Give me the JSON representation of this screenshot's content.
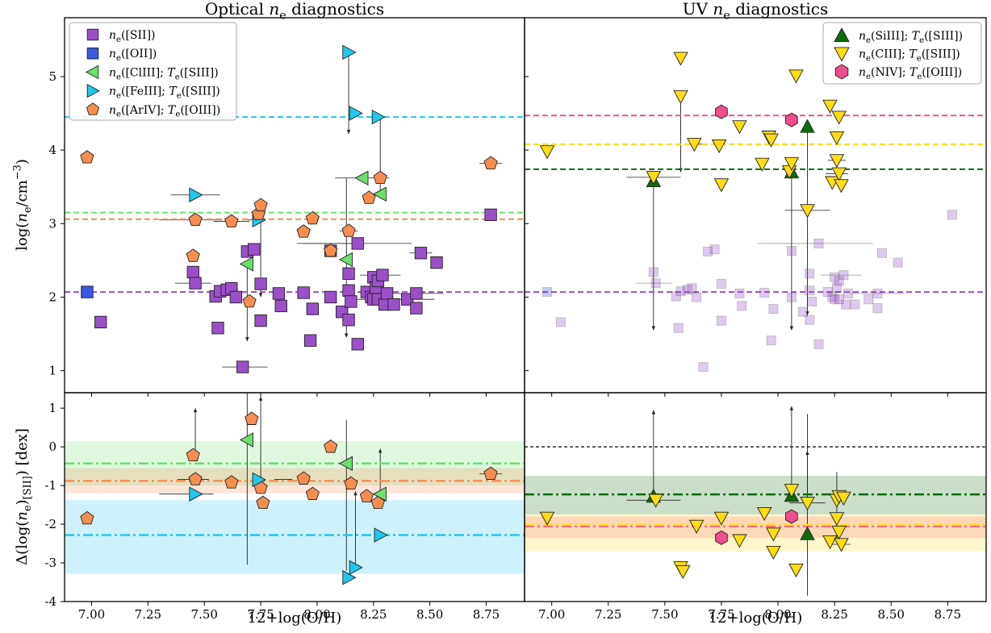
{
  "chart_data": [
    {
      "type": "scatter",
      "panel": "top-left",
      "title": "Optical n_e diagnostics",
      "title_parts": {
        "prefix": "Optical ",
        "sym": "n",
        "sub": "e",
        "suffix": " diagnostics"
      },
      "ylabel": "log(n_e/cm^-3)",
      "xlim": [
        6.88,
        8.92
      ],
      "ylim": [
        0.7,
        5.8
      ],
      "yticks": [
        1,
        2,
        3,
        4,
        5
      ],
      "legend_position": "upper-left",
      "legend": [
        {
          "key": "sii",
          "sym": "n",
          "sub": "e",
          "text": "([SII])"
        },
        {
          "key": "oii",
          "sym": "n",
          "sub": "e",
          "text": "([OII])"
        },
        {
          "key": "cliii",
          "sym": "n",
          "sub": "e",
          "text": "([ClIII]; ",
          "sym2": "T",
          "sub2": "e",
          "text2": "([SIII])"
        },
        {
          "key": "feiii",
          "sym": "n",
          "sub": "e",
          "text": "([FeIII]; ",
          "sym2": "T",
          "sub2": "e",
          "text2": "([SIII])"
        },
        {
          "key": "ariv",
          "sym": "n",
          "sub": "e",
          "text": "([ArIV]; ",
          "sym2": "T",
          "sub2": "e",
          "text2": "([OIII])"
        }
      ],
      "medians": [
        {
          "series": "feiii",
          "value": 4.45
        },
        {
          "series": "cliii",
          "value": 3.15
        },
        {
          "series": "ariv",
          "value": 3.06
        },
        {
          "series": "sii",
          "value": 2.07
        }
      ],
      "series": [
        {
          "key": "sii",
          "name": "n_e([SII])",
          "points": [
            [
              7.04,
              1.66
            ],
            [
              7.45,
              2.34
            ],
            [
              7.46,
              2.19
            ],
            [
              7.55,
              2.01
            ],
            [
              7.56,
              1.58
            ],
            [
              7.57,
              2.08
            ],
            [
              7.6,
              2.1
            ],
            [
              7.62,
              2.12
            ],
            [
              7.64,
              2.0
            ],
            [
              7.67,
              1.05
            ],
            [
              7.69,
              2.62
            ],
            [
              7.72,
              2.65
            ],
            [
              7.75,
              2.18
            ],
            [
              7.75,
              1.68
            ],
            [
              7.83,
              2.05
            ],
            [
              7.84,
              1.88
            ],
            [
              7.94,
              2.06
            ],
            [
              7.97,
              1.41
            ],
            [
              7.98,
              1.84
            ],
            [
              8.06,
              2.0
            ],
            [
              8.06,
              2.63
            ],
            [
              8.11,
              1.8
            ],
            [
              8.14,
              2.32
            ],
            [
              8.14,
              2.09
            ],
            [
              8.14,
              1.69
            ],
            [
              8.15,
              1.94
            ],
            [
              8.18,
              1.36
            ],
            [
              8.18,
              2.73
            ],
            [
              8.22,
              2.07
            ],
            [
              8.24,
              2.0
            ],
            [
              8.25,
              2.27
            ],
            [
              8.25,
              1.97
            ],
            [
              8.26,
              2.13
            ],
            [
              8.27,
              2.22
            ],
            [
              8.27,
              1.97
            ],
            [
              8.29,
              2.3
            ],
            [
              8.3,
              1.9
            ],
            [
              8.31,
              2.05
            ],
            [
              8.34,
              1.9
            ],
            [
              8.4,
              1.97
            ],
            [
              8.44,
              1.85
            ],
            [
              8.44,
              2.05
            ],
            [
              8.46,
              2.6
            ],
            [
              8.53,
              2.47
            ],
            [
              8.77,
              3.12
            ]
          ]
        },
        {
          "key": "oii",
          "name": "n_e([OII])",
          "points": [
            [
              6.98,
              2.07
            ]
          ]
        },
        {
          "key": "cliii",
          "name": "n_e([ClIII]; T_e([SIII]))",
          "points": [
            [
              7.69,
              2.45
            ],
            [
              8.13,
              2.51
            ],
            [
              8.2,
              3.62
            ],
            [
              8.28,
              3.4
            ]
          ]
        },
        {
          "key": "feiii",
          "name": "n_e([FeIII]; T_e([SIII]))",
          "points": [
            [
              7.46,
              3.39
            ],
            [
              7.74,
              3.05
            ],
            [
              8.14,
              5.33
            ],
            [
              8.17,
              4.5
            ],
            [
              8.27,
              4.45
            ]
          ]
        },
        {
          "key": "ariv",
          "name": "n_e([ArIV]; T_e([OIII]))",
          "points": [
            [
              6.98,
              3.9
            ],
            [
              7.45,
              2.56
            ],
            [
              7.46,
              3.05
            ],
            [
              7.62,
              3.03
            ],
            [
              7.7,
              1.94
            ],
            [
              7.74,
              3.13
            ],
            [
              7.75,
              3.25
            ],
            [
              7.94,
              2.89
            ],
            [
              7.98,
              3.07
            ],
            [
              8.06,
              2.63
            ],
            [
              8.14,
              2.9
            ],
            [
              8.23,
              3.35
            ],
            [
              8.28,
              3.62
            ],
            [
              8.77,
              3.82
            ]
          ]
        }
      ]
    },
    {
      "type": "scatter",
      "panel": "top-right",
      "title": "UV n_e diagnostics",
      "title_parts": {
        "prefix": "UV ",
        "sym": "n",
        "sub": "e",
        "suffix": " diagnostics"
      },
      "xlim": [
        6.88,
        8.92
      ],
      "ylim": [
        0.7,
        5.8
      ],
      "legend_position": "upper-right",
      "legend": [
        {
          "key": "siiii",
          "sym": "n",
          "sub": "e",
          "text": "(SiIII]; ",
          "sym2": "T",
          "sub2": "e",
          "text2": "([SIII])"
        },
        {
          "key": "ciii",
          "sym": "n",
          "sub": "e",
          "text": "(CIII]; ",
          "sym2": "T",
          "sub2": "e",
          "text2": "([SIII])"
        },
        {
          "key": "niv",
          "sym": "n",
          "sub": "e",
          "text": "(NIV]; ",
          "sym2": "T",
          "sub2": "e",
          "text2": "([OIII])"
        }
      ],
      "medians": [
        {
          "series": "niv",
          "value": 4.47
        },
        {
          "series": "ciii",
          "value": 4.08
        },
        {
          "series": "siiii",
          "value": 3.74
        },
        {
          "series": "sii",
          "value": 2.07
        }
      ],
      "series": [
        {
          "key": "siiii",
          "name": "n_e(SiIII]; T_e([SIII]))",
          "points": [
            [
              7.45,
              3.58
            ],
            [
              8.06,
              3.7
            ],
            [
              8.13,
              4.32
            ]
          ]
        },
        {
          "key": "ciii",
          "name": "n_e(CIII]; T_e([SIII]))",
          "points": [
            [
              6.98,
              3.98
            ],
            [
              7.45,
              3.63
            ],
            [
              7.57,
              5.25
            ],
            [
              7.57,
              4.73
            ],
            [
              7.63,
              4.08
            ],
            [
              7.74,
              4.06
            ],
            [
              7.75,
              3.53
            ],
            [
              7.83,
              4.32
            ],
            [
              7.93,
              3.81
            ],
            [
              7.96,
              4.18
            ],
            [
              7.97,
              4.14
            ],
            [
              8.05,
              3.71
            ],
            [
              8.06,
              3.82
            ],
            [
              8.08,
              5.01
            ],
            [
              8.13,
              3.18
            ],
            [
              8.23,
              4.6
            ],
            [
              8.24,
              3.56
            ],
            [
              8.26,
              3.86
            ],
            [
              8.26,
              4.17
            ],
            [
              8.27,
              3.68
            ],
            [
              8.27,
              4.45
            ],
            [
              8.28,
              3.52
            ]
          ]
        },
        {
          "key": "niv",
          "name": "n_e(NIV]; T_e([OIII]))",
          "points": [
            [
              7.75,
              4.52
            ],
            [
              8.06,
              4.41
            ]
          ]
        }
      ]
    },
    {
      "type": "scatter",
      "panel": "bottom-left",
      "ylabel": "Δ(log(n_e)_[SII]) [dex]",
      "xlabel": "12+log(O/H)",
      "xlim": [
        6.88,
        8.92
      ],
      "ylim": [
        -4,
        1.4
      ],
      "xticks": [
        "7.00",
        "7.25",
        "7.50",
        "7.75",
        "8.00",
        "8.25",
        "8.50",
        "8.75"
      ],
      "yticks": [
        1,
        0,
        -1,
        -2,
        -3,
        -4
      ],
      "medians": [
        {
          "series": "cliii",
          "value": -0.43,
          "band": [
            -1.0,
            0.15
          ]
        },
        {
          "series": "ariv",
          "value": -0.88,
          "band": [
            -1.2,
            -0.55
          ]
        },
        {
          "series": "feiii",
          "value": -2.28,
          "band": [
            -3.28,
            -1.38
          ]
        }
      ],
      "series": [
        {
          "key": "ariv",
          "points": [
            [
              6.98,
              -1.85
            ],
            [
              7.45,
              -0.22
            ],
            [
              7.46,
              -0.84
            ],
            [
              7.62,
              -0.92
            ],
            [
              7.71,
              0.72
            ],
            [
              7.75,
              -1.06
            ],
            [
              7.76,
              -1.45
            ],
            [
              7.94,
              -0.82
            ],
            [
              7.98,
              -1.22
            ],
            [
              8.06,
              0.0
            ],
            [
              8.15,
              -0.95
            ],
            [
              8.22,
              -1.28
            ],
            [
              8.27,
              -1.45
            ],
            [
              8.77,
              -0.7
            ]
          ]
        },
        {
          "key": "cliii",
          "points": [
            [
              7.69,
              0.18
            ],
            [
              8.13,
              -0.43
            ],
            [
              8.28,
              -1.22
            ]
          ]
        },
        {
          "key": "feiii",
          "points": [
            [
              7.46,
              -1.22
            ],
            [
              7.74,
              -0.85
            ],
            [
              8.14,
              -3.38
            ],
            [
              8.17,
              -3.12
            ],
            [
              8.28,
              -2.28
            ]
          ]
        }
      ]
    },
    {
      "type": "scatter",
      "panel": "bottom-right",
      "xlabel": "12+log(O/H)",
      "xlim": [
        6.88,
        8.92
      ],
      "ylim": [
        -4,
        1.4
      ],
      "xticks": [
        "7.00",
        "7.25",
        "7.50",
        "7.75",
        "8.00",
        "8.25",
        "8.50",
        "8.75"
      ],
      "medians": [
        {
          "series": "siiii",
          "value": -1.23,
          "band": [
            -1.75,
            -0.75
          ]
        },
        {
          "series": "niv",
          "value": -2.05,
          "band": [
            -2.35,
            -1.8
          ]
        },
        {
          "series": "ciii",
          "value": -2.02,
          "band": [
            -2.7,
            -1.75
          ]
        },
        {
          "series": "zero",
          "value": 0.0
        }
      ],
      "series": [
        {
          "key": "siiii",
          "points": [
            [
              7.45,
              -1.28
            ],
            [
              8.06,
              -1.26
            ],
            [
              8.13,
              -2.25
            ]
          ]
        },
        {
          "key": "ciii",
          "points": [
            [
              6.98,
              -1.84
            ],
            [
              7.46,
              -1.38
            ],
            [
              7.57,
              -3.12
            ],
            [
              7.58,
              -3.22
            ],
            [
              7.64,
              -2.05
            ],
            [
              7.75,
              -1.84
            ],
            [
              7.83,
              -2.42
            ],
            [
              7.94,
              -1.72
            ],
            [
              7.98,
              -2.72
            ],
            [
              7.98,
              -2.25
            ],
            [
              8.06,
              -1.12
            ],
            [
              8.08,
              -3.18
            ],
            [
              8.13,
              -1.45
            ],
            [
              8.23,
              -2.45
            ],
            [
              8.26,
              -1.85
            ],
            [
              8.26,
              -1.38
            ],
            [
              8.27,
              -1.28
            ],
            [
              8.28,
              -2.52
            ],
            [
              8.29,
              -1.32
            ],
            [
              8.27,
              -2.2
            ]
          ]
        },
        {
          "key": "niv",
          "points": [
            [
              7.75,
              -2.35
            ],
            [
              8.06,
              -1.8
            ]
          ]
        }
      ]
    }
  ],
  "colors": {
    "sii": "#9b4fc9",
    "oii": "#3a58e0",
    "cliii": "#6ce06c",
    "feiii": "#22c6ee",
    "ariv": "#f78e4f",
    "siiii": "#0e6b0e",
    "ciii": "#ffdc14",
    "niv": "#ee4d8e",
    "zero": "#000000"
  }
}
